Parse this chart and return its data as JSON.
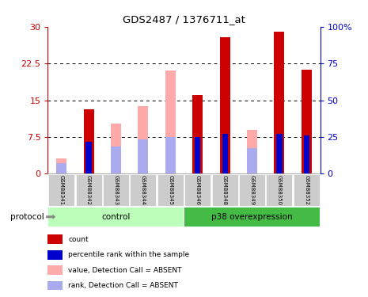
{
  "title": "GDS2487 / 1376711_at",
  "samples": [
    "GSM88341",
    "GSM88342",
    "GSM88343",
    "GSM88344",
    "GSM88345",
    "GSM88346",
    "GSM88348",
    "GSM88349",
    "GSM88350",
    "GSM88352"
  ],
  "absent": [
    true,
    false,
    true,
    true,
    true,
    false,
    false,
    true,
    false,
    false
  ],
  "value_bars": [
    3.2,
    13.2,
    10.2,
    13.8,
    21.0,
    16.0,
    27.8,
    9.0,
    29.0,
    21.2
  ],
  "rank_bars": [
    2.1,
    6.5,
    5.5,
    7.0,
    7.5,
    7.5,
    8.2,
    5.2,
    8.2,
    7.8
  ],
  "ylim_left": [
    0,
    30
  ],
  "ylim_right": [
    0,
    100
  ],
  "yticks_left": [
    0,
    7.5,
    15,
    22.5,
    30
  ],
  "yticks_right": [
    0,
    25,
    50,
    75,
    100
  ],
  "color_red": "#cc0000",
  "color_pink": "#ffaaaa",
  "color_blue": "#0000cc",
  "color_lightblue": "#aaaaee",
  "color_ctrl_bg": "#bbffbb",
  "color_p38_bg": "#44bb44",
  "bar_width": 0.38,
  "ctrl_label": "control",
  "p38_label": "p38 overexpression",
  "protocol_label": "protocol",
  "legend_labels": [
    "count",
    "percentile rank within the sample",
    "value, Detection Call = ABSENT",
    "rank, Detection Call = ABSENT"
  ],
  "bg_color": "#ffffff",
  "sample_bg": "#cccccc"
}
